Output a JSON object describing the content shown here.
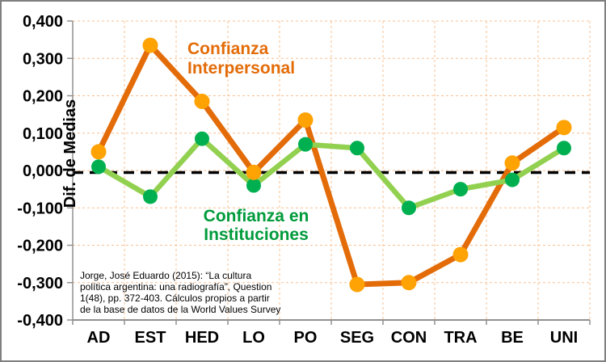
{
  "chart_data": {
    "type": "line",
    "title": "",
    "categories": [
      "AD",
      "EST",
      "HED",
      "LO",
      "PO",
      "SEG",
      "CON",
      "TRA",
      "BE",
      "UNI"
    ],
    "series": [
      {
        "id": "interpersonal",
        "name": "Confianza Interpersonal",
        "values": [
          0.05,
          0.335,
          0.185,
          -0.005,
          0.135,
          -0.305,
          -0.3,
          -0.225,
          0.02,
          0.115
        ],
        "line_color": "#E36C09",
        "marker_color": "#FFA203",
        "line_width": 7,
        "marker_radius": 9.5
      },
      {
        "id": "instituciones",
        "name": "Confianza en Instituciones",
        "values": [
          0.01,
          -0.07,
          0.085,
          -0.04,
          0.07,
          0.06,
          -0.1,
          -0.05,
          -0.025,
          0.06
        ],
        "line_color": "#92D050",
        "marker_color": "#00B050",
        "line_width": 6.5,
        "marker_radius": 9
      }
    ],
    "xlabel": "",
    "ylabel": "Dif. de Medias",
    "ylim": [
      -0.4,
      0.4
    ],
    "yticks": [
      "0,400",
      "0,300",
      "0,200",
      "0,100",
      "0,000",
      "-0,100",
      "-0,200",
      "-0,300",
      "-0,400"
    ],
    "grid": true,
    "grid_color": "#FAC090",
    "axis_color": "#919191",
    "zero_line": true,
    "zero_line_color": "#000000",
    "legend_position": "in-plot-text-labels"
  },
  "annotations": {
    "interpersonal_label": {
      "lines": [
        "Confianza",
        "Interpersonal"
      ],
      "color": "#E36C09"
    },
    "instituciones_label": {
      "lines": [
        "Confianza en",
        "Instituciones"
      ],
      "color": "#009B3B"
    },
    "citation_lines": [
      "Jorge, José Eduardo (2015): “La cultura",
      "política argentina: una radiografía”, Question",
      "1(48), pp. 372-403. Cálculos propios a partir",
      "de la base de datos de la World Values Survey"
    ]
  }
}
